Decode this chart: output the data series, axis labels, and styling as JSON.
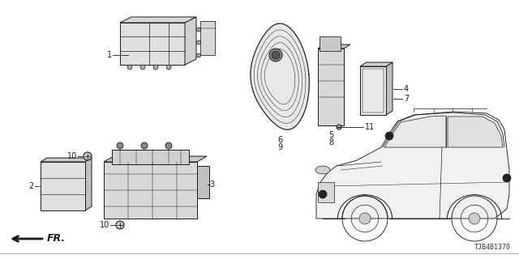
{
  "diagram_id": "TJB4B1370",
  "bg_color": "#ffffff",
  "line_color": "#1a1a1a",
  "fig_width": 6.4,
  "fig_height": 3.2,
  "dpi": 100,
  "part1_label": "1",
  "part2_label": "2",
  "part3_label": "3",
  "part4_label": "4",
  "part5_label": "5",
  "part6_label": "6",
  "part7_label": "7",
  "part8_label": "8",
  "part9_label": "9",
  "part10_label": "10",
  "part11_label": "11",
  "fr_label": "FR."
}
